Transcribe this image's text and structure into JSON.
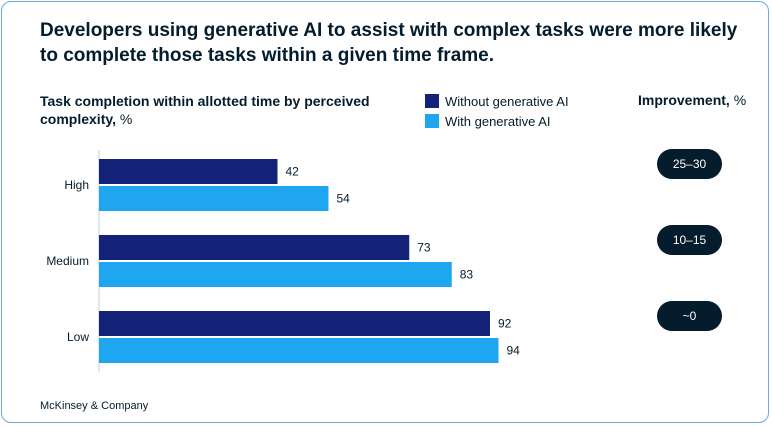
{
  "title": "Developers using generative AI to assist with complex tasks were more likely to complete those tasks within a given time frame.",
  "subtitle": {
    "bold": "Task completion within allotted time by perceived complexity,",
    "unit": " %"
  },
  "legend": {
    "without": "Without generative AI",
    "with": "With generative AI"
  },
  "improvement": {
    "header_bold": "Improvement,",
    "header_unit": " %",
    "values": [
      "25–30",
      "10–15",
      "~0"
    ]
  },
  "colors": {
    "without": "#14227a",
    "with": "#1ea7f0",
    "pill": "#051c2c"
  },
  "footer": "McKinsey & Company",
  "chart_data": {
    "type": "bar",
    "orientation": "horizontal",
    "categories": [
      "High",
      "Medium",
      "Low"
    ],
    "series": [
      {
        "name": "Without generative AI",
        "values": [
          42,
          73,
          92
        ]
      },
      {
        "name": "With generative AI",
        "values": [
          54,
          83,
          94
        ]
      }
    ],
    "xlim": [
      0,
      100
    ],
    "grid": false,
    "legend_position": "top"
  }
}
